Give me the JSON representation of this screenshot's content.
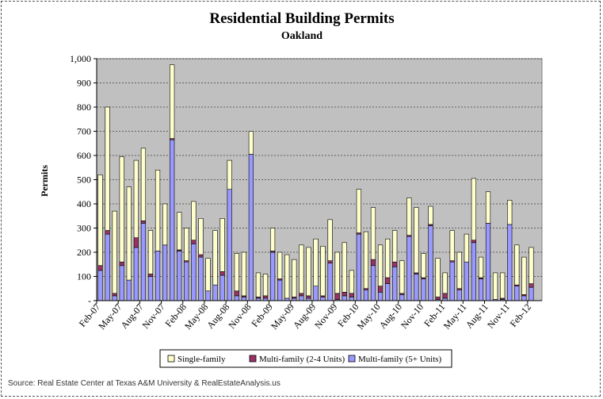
{
  "chart_data": {
    "type": "bar",
    "stacked": true,
    "title": "Residential Building Permits",
    "subtitle": "Oakland",
    "ylabel": "Permits",
    "xlabel": "",
    "ylim": [
      0,
      1000
    ],
    "yticks": [
      {
        "value": 0,
        "label": "-"
      },
      {
        "value": 100,
        "label": "100"
      },
      {
        "value": 200,
        "label": "200"
      },
      {
        "value": 300,
        "label": "300"
      },
      {
        "value": 400,
        "label": "400"
      },
      {
        "value": 500,
        "label": "500"
      },
      {
        "value": 600,
        "label": "600"
      },
      {
        "value": 700,
        "label": "700"
      },
      {
        "value": 800,
        "label": "800"
      },
      {
        "value": 900,
        "label": "900"
      },
      {
        "value": 1000,
        "label": "1,000"
      }
    ],
    "grid": true,
    "legend_position": "bottom",
    "background_color": "#c0c0c0",
    "categories": [
      "Feb-07",
      "Mar-07",
      "Apr-07",
      "May-07",
      "Jun-07",
      "Jul-07",
      "Aug-07",
      "Sep-07",
      "Oct-07",
      "Nov-07",
      "Dec-07",
      "Jan-08",
      "Feb-08",
      "Mar-08",
      "Apr-08",
      "May-08",
      "Jun-08",
      "Jul-08",
      "Aug-08",
      "Sep-08",
      "Oct-08",
      "Nov-08",
      "Dec-08",
      "Jan-09",
      "Feb-09",
      "Mar-09",
      "Apr-09",
      "May-09",
      "Jun-09",
      "Jul-09",
      "Aug-09",
      "Sep-09",
      "Oct-09",
      "Nov-09",
      "Dec-09",
      "Jan-10",
      "Feb-10",
      "Mar-10",
      "Apr-10",
      "May-10",
      "Jun-10",
      "Jul-10",
      "Aug-10",
      "Sep-10",
      "Oct-10",
      "Nov-10",
      "Dec-10",
      "Jan-11",
      "Feb-11",
      "Mar-11",
      "Apr-11",
      "May-11",
      "Jun-11",
      "Jul-11",
      "Aug-11",
      "Sep-11",
      "Oct-11",
      "Nov-11",
      "Dec-11",
      "Jan-12",
      "Feb-12",
      "Mar-12"
    ],
    "tick_labels": [
      "Feb-07",
      "May-07",
      "Aug-07",
      "Nov-07",
      "Feb-08",
      "May-08",
      "Aug-08",
      "Nov-08",
      "Feb-09",
      "May-09",
      "Aug-09",
      "Nov-09",
      "Feb-10",
      "May-10",
      "Aug-10",
      "Nov-10",
      "Feb-11",
      "May-11",
      "Aug-11",
      "Nov-11",
      "Feb-12"
    ],
    "series": [
      {
        "name": "Multi-family (5+ Units)",
        "color": "#9999ff",
        "values": [
          125,
          275,
          20,
          145,
          85,
          220,
          320,
          100,
          205,
          230,
          665,
          205,
          160,
          235,
          180,
          40,
          65,
          105,
          460,
          20,
          15,
          605,
          10,
          10,
          200,
          85,
          10,
          10,
          20,
          10,
          60,
          15,
          155,
          5,
          20,
          15,
          275,
          45,
          145,
          35,
          70,
          140,
          25,
          265,
          110,
          90,
          310,
          5,
          10,
          160,
          45,
          160,
          240,
          90,
          320,
          5,
          5,
          315,
          60,
          20,
          55,
          0
        ]
      },
      {
        "name": "Multi-family (2-4 Units)",
        "color": "#993366",
        "values": [
          20,
          15,
          10,
          15,
          0,
          40,
          10,
          10,
          0,
          0,
          5,
          5,
          5,
          15,
          10,
          0,
          0,
          15,
          0,
          20,
          5,
          0,
          5,
          10,
          5,
          5,
          0,
          5,
          10,
          10,
          0,
          5,
          10,
          25,
          15,
          15,
          5,
          5,
          25,
          25,
          25,
          20,
          5,
          5,
          5,
          5,
          5,
          10,
          20,
          5,
          5,
          0,
          10,
          5,
          0,
          0,
          5,
          0,
          5,
          5,
          15,
          0
        ]
      },
      {
        "name": "Single-family",
        "color": "#ffffcc",
        "values": [
          375,
          510,
          340,
          435,
          385,
          320,
          300,
          180,
          335,
          170,
          305,
          155,
          135,
          160,
          150,
          135,
          225,
          220,
          120,
          155,
          180,
          95,
          100,
          90,
          95,
          110,
          180,
          155,
          200,
          200,
          195,
          205,
          170,
          170,
          205,
          95,
          180,
          235,
          215,
          170,
          160,
          130,
          135,
          155,
          270,
          100,
          75,
          160,
          85,
          125,
          150,
          115,
          255,
          85,
          130,
          110,
          105,
          100,
          165,
          155,
          150,
          0
        ]
      }
    ],
    "legend_order": [
      "Single-family",
      "Multi-family (2-4 Units)",
      "Multi-family (5+ Units)"
    ],
    "source": "Source: Real Estate Center at Texas A&M University & RealEstateAnalysis.us"
  }
}
